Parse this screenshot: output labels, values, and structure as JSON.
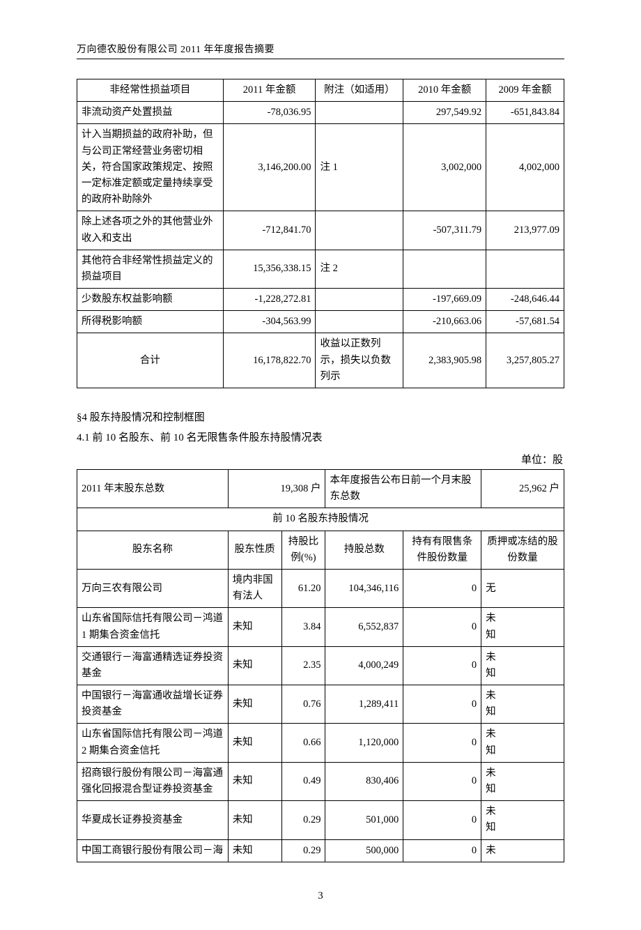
{
  "header": {
    "title": "万向德农股份有限公司 2011 年年度报告摘要"
  },
  "table1": {
    "columns": [
      "非经常性损益项目",
      "2011 年金额",
      "附注（如适用）",
      "2010 年金额",
      "2009 年金额"
    ],
    "colwidths_pct": [
      30,
      19,
      18,
      17,
      16
    ],
    "rows": [
      {
        "item": "非流动资产处置损益",
        "y2011": "-78,036.95",
        "note": "",
        "y2010": "297,549.92",
        "y2009": "-651,843.84"
      },
      {
        "item": "计入当期损益的政府补助，但与公司正常经营业务密切相关，符合国家政策规定、按照一定标准定额或定量持续享受的政府补助除外",
        "y2011": "3,146,200.00",
        "note": "注 1",
        "y2010": "3,002,000",
        "y2009": "4,002,000"
      },
      {
        "item": "除上述各项之外的其他营业外收入和支出",
        "y2011": "-712,841.70",
        "note": "",
        "y2010": "-507,311.79",
        "y2009": "213,977.09"
      },
      {
        "item": "其他符合非经常性损益定义的损益项目",
        "y2011": "15,356,338.15",
        "note": "注 2",
        "y2010": "",
        "y2009": ""
      },
      {
        "item": "少数股东权益影响额",
        "y2011": "-1,228,272.81",
        "note": "",
        "y2010": "-197,669.09",
        "y2009": "-248,646.44"
      },
      {
        "item": "所得税影响额",
        "y2011": "-304,563.99",
        "note": "",
        "y2010": "-210,663.06",
        "y2009": "-57,681.54"
      },
      {
        "item": "合计",
        "y2011": "16,178,822.70",
        "note": "收益以正数列示，损失以负数列示",
        "y2010": "2,383,905.98",
        "y2009": "3,257,805.27",
        "item_center": true
      }
    ]
  },
  "section4": {
    "title_line1": "§4 股东持股情况和控制框图",
    "title_line2": "4.1 前 10 名股东、前 10 名无限售条件股东持股情况表",
    "unit": "单位：股"
  },
  "table2": {
    "colwidths_pct": [
      7,
      24,
      11,
      9,
      16,
      11,
      5,
      17
    ],
    "top": {
      "left_label": "2011 年末股东总数",
      "left_value": "19,308 户",
      "right_label": "本年度报告公布日前一个月末股东总数",
      "right_value": "25,962 户"
    },
    "subtitle": "前 10 名股东持股情况",
    "headers": {
      "name": "股东名称",
      "nature": "股东性质",
      "ratio": "持股比例(%)",
      "total": "持股总数",
      "restricted": "持有有限售条件股份数量",
      "pledged": "质押或冻结的股份数量"
    },
    "rows": [
      {
        "name": "万向三农有限公司",
        "nature": "境内非国有法人",
        "ratio": "61.20",
        "total": "104,346,116",
        "restricted": "0",
        "pledged": "无"
      },
      {
        "name": "山东省国际信托有限公司－鸿道 1 期集合资金信托",
        "nature": "未知",
        "ratio": "3.84",
        "total": "6,552,837",
        "restricted": "0",
        "pledged": "未\n知"
      },
      {
        "name": "交通银行－海富通精选证券投资基金",
        "nature": "未知",
        "ratio": "2.35",
        "total": "4,000,249",
        "restricted": "0",
        "pledged": "未\n知"
      },
      {
        "name": "中国银行－海富通收益增长证券投资基金",
        "nature": "未知",
        "ratio": "0.76",
        "total": "1,289,411",
        "restricted": "0",
        "pledged": "未\n知"
      },
      {
        "name": "山东省国际信托有限公司－鸿道 2 期集合资金信托",
        "nature": "未知",
        "ratio": "0.66",
        "total": "1,120,000",
        "restricted": "0",
        "pledged": "未\n知"
      },
      {
        "name": "招商银行股份有限公司－海富通强化回报混合型证券投资基金",
        "nature": "未知",
        "ratio": "0.49",
        "total": "830,406",
        "restricted": "0",
        "pledged": "未\n知"
      },
      {
        "name": "华夏成长证券投资基金",
        "nature": "未知",
        "ratio": "0.29",
        "total": "501,000",
        "restricted": "0",
        "pledged": "未\n知"
      },
      {
        "name": "中国工商银行股份有限公司－海",
        "nature": "未知",
        "ratio": "0.29",
        "total": "500,000",
        "restricted": "0",
        "pledged": "未"
      }
    ]
  },
  "page_number": "3"
}
